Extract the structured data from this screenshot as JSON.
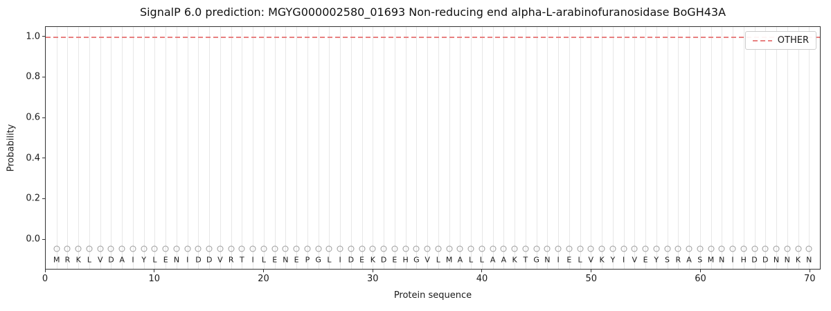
{
  "chart_data": {
    "type": "line",
    "title": "SignalP 6.0 prediction: MGYG000002580_01693 Non-reducing end alpha-L-arabinofuranosidase BoGH43A",
    "xlabel": "Protein sequence",
    "ylabel": "Probability",
    "xlim": [
      0,
      71
    ],
    "ylim": [
      -0.15,
      1.05
    ],
    "grid": "vertical-per-residue",
    "x_ticks": [
      0,
      10,
      20,
      30,
      40,
      50,
      60,
      70
    ],
    "x_tick_labels": [
      "0",
      "10",
      "20",
      "30",
      "40",
      "50",
      "60",
      "70"
    ],
    "y_ticks": [
      0.0,
      0.2,
      0.4,
      0.6,
      0.8,
      1.0
    ],
    "y_tick_labels": [
      "0.0",
      "0.2",
      "0.4",
      "0.6",
      "0.8",
      "1.0"
    ],
    "legend": [
      {
        "label": "OTHER",
        "color": "#e88080",
        "linestyle": "dashed",
        "position": "upper right"
      }
    ],
    "series": [
      {
        "name": "OTHER",
        "linestyle": "dashed",
        "color": "#e88080",
        "y_constant": 1.0,
        "x_start": 1,
        "x_end": 70
      }
    ],
    "markers": {
      "shape": "circle",
      "color": "#9b9b9b",
      "y": -0.05
    },
    "sequence_y": -0.105,
    "sequence": [
      "M",
      "R",
      "K",
      "L",
      "V",
      "D",
      "A",
      "I",
      "Y",
      "L",
      "E",
      "N",
      "I",
      "D",
      "D",
      "V",
      "R",
      "T",
      "I",
      "L",
      "E",
      "N",
      "E",
      "P",
      "G",
      "L",
      "I",
      "D",
      "E",
      "K",
      "D",
      "E",
      "H",
      "G",
      "V",
      "L",
      "M",
      "A",
      "L",
      "L",
      "A",
      "A",
      "K",
      "T",
      "G",
      "N",
      "I",
      "E",
      "L",
      "V",
      "K",
      "Y",
      "I",
      "V",
      "E",
      "Y",
      "S",
      "R",
      "A",
      "S",
      "M",
      "N",
      "I",
      "H",
      "D",
      "D",
      "N",
      "N",
      "K",
      "N"
    ]
  }
}
